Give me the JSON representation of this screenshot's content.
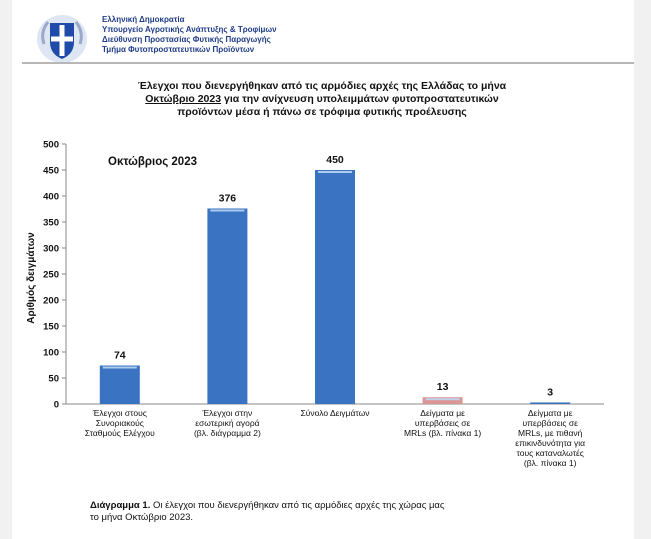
{
  "header": {
    "lines": [
      "Ελληνική Δημοκρατία",
      "Υπουργείο Αγροτικής Ανάπτυξης & Τροφίμων",
      "Διεύθυνση Προστασίας Φυτικής Παραγωγής",
      "Τμήμα Φυτοπροστατευτικών Προϊόντων"
    ]
  },
  "title": {
    "line1": "Έλεγχοι που διενεργήθηκαν από τις αρμόδιες αρχές της Ελλάδας το μήνα",
    "line2_underlined": "Οκτώβριο 2023",
    "line2_rest": " για την ανίχνευση υπολειμμάτων φυτοπροστατευτικών",
    "line3": "προϊόντων μέσα ή πάνω σε τρόφιμα φυτικής προέλευσης"
  },
  "chart_data": {
    "type": "bar",
    "annotation": "Οκτώβριος 2023",
    "ylabel": "Αριθμός δειγμάτων",
    "xlabel": "",
    "ylim": [
      0,
      500
    ],
    "yticks": [
      0,
      50,
      100,
      150,
      200,
      250,
      300,
      350,
      400,
      450,
      500
    ],
    "categories": [
      [
        "Έλεγχοι στους",
        "Συνοριακούς",
        "Σταθμούς Ελέγχου"
      ],
      [
        "Έλεγχοι στην",
        "εσωτερική αγορά",
        "(βλ. διάγραμμα 2)"
      ],
      [
        "Σύνολο Δειγμάτων"
      ],
      [
        "Δείγματα με",
        "υπερβάσεις σε",
        "MRLs (βλ. πίνακα 1)"
      ],
      [
        "Δείγματα με",
        "υπερβάσεις σε",
        "MRLs, με πιθανή",
        "επικινδυνότητα για",
        "τους καταναλωτές",
        "(βλ. πίνακα 1)"
      ]
    ],
    "values": [
      74,
      376,
      450,
      13,
      3
    ],
    "colors": [
      "#3a73c2",
      "#3a73c2",
      "#3a73c2",
      "#d99694",
      "#3a73c2"
    ],
    "grid": false,
    "legend": "none"
  },
  "caption": {
    "label": "Διάγραμμα 1.",
    "text": " Οι έλεγχοι που διενεργήθηκαν από τις αρμόδιες αρχές της χώρας μας",
    "text2": "το μήνα Οκτώβριο 2023."
  }
}
